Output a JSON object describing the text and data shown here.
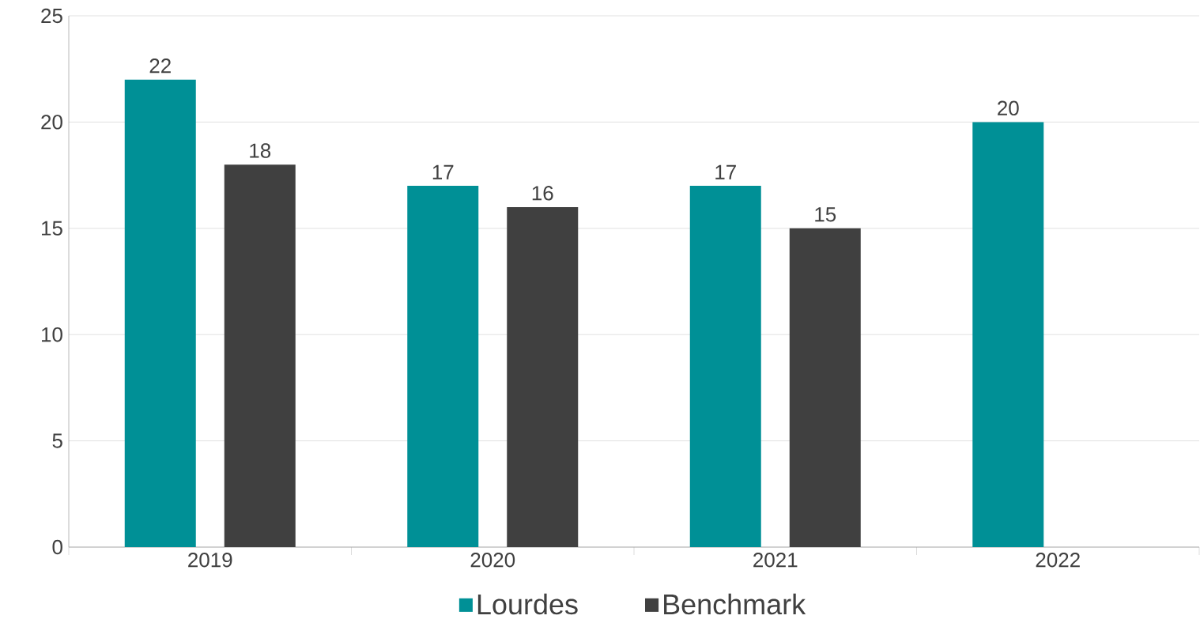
{
  "chart_data": {
    "type": "bar",
    "categories": [
      "2019",
      "2020",
      "2021",
      "2022"
    ],
    "series": [
      {
        "name": "Lourdes",
        "color": "#009096",
        "values": [
          22,
          17,
          17,
          20
        ]
      },
      {
        "name": "Benchmark",
        "color": "#404040",
        "values": [
          18,
          16,
          15,
          null
        ]
      }
    ],
    "ylim": [
      0,
      25
    ],
    "yticks": [
      0,
      5,
      10,
      15,
      20,
      25
    ],
    "grid": "y",
    "legend": "bottom",
    "data_labels": true
  }
}
